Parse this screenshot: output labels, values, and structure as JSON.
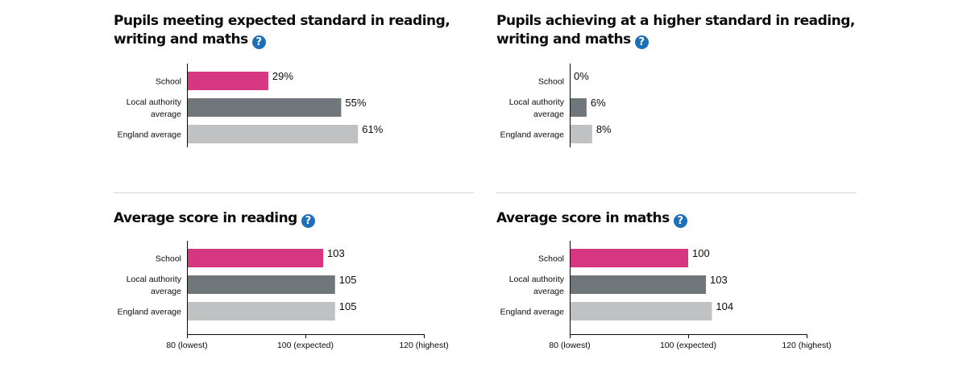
{
  "help_icon_glyph": "?",
  "colors": {
    "school": "#d53880",
    "local_authority": "#6f777b",
    "england": "#bfc1c3",
    "help": "#1d70b8",
    "axis": "#0b0c0c"
  },
  "charts": [
    {
      "title": "Pupils meeting expected standard in reading, writing and maths",
      "chart_data": {
        "type": "bar",
        "orientation": "horizontal",
        "categories": [
          "School",
          "Local authority average",
          "England average"
        ],
        "values": [
          29,
          55,
          61
        ],
        "value_labels": [
          "29%",
          "55%",
          "61%"
        ],
        "xlim": [
          0,
          100
        ]
      }
    },
    {
      "title": "Pupils achieving at a higher standard in reading, writing and maths",
      "chart_data": {
        "type": "bar",
        "orientation": "horizontal",
        "categories": [
          "School",
          "Local authority average",
          "England average"
        ],
        "values": [
          0,
          6,
          8
        ],
        "value_labels": [
          "0%",
          "6%",
          "8%"
        ],
        "xlim": [
          0,
          100
        ]
      }
    },
    {
      "title": "Average score in reading",
      "chart_data": {
        "type": "bar",
        "orientation": "horizontal",
        "categories": [
          "School",
          "Local authority average",
          "England average"
        ],
        "values": [
          103,
          105,
          105
        ],
        "value_labels": [
          "103",
          "105",
          "105"
        ],
        "xlim": [
          80,
          120
        ],
        "ticks": [
          80,
          100,
          120
        ],
        "tick_labels": [
          "80 (lowest)",
          "100 (expected)",
          "120 (highest)"
        ]
      }
    },
    {
      "title": "Average score in maths",
      "chart_data": {
        "type": "bar",
        "orientation": "horizontal",
        "categories": [
          "School",
          "Local authority average",
          "England average"
        ],
        "values": [
          100,
          103,
          104
        ],
        "value_labels": [
          "100",
          "103",
          "104"
        ],
        "xlim": [
          80,
          120
        ],
        "ticks": [
          80,
          100,
          120
        ],
        "tick_labels": [
          "80 (lowest)",
          "100 (expected)",
          "120 (highest)"
        ]
      }
    }
  ]
}
